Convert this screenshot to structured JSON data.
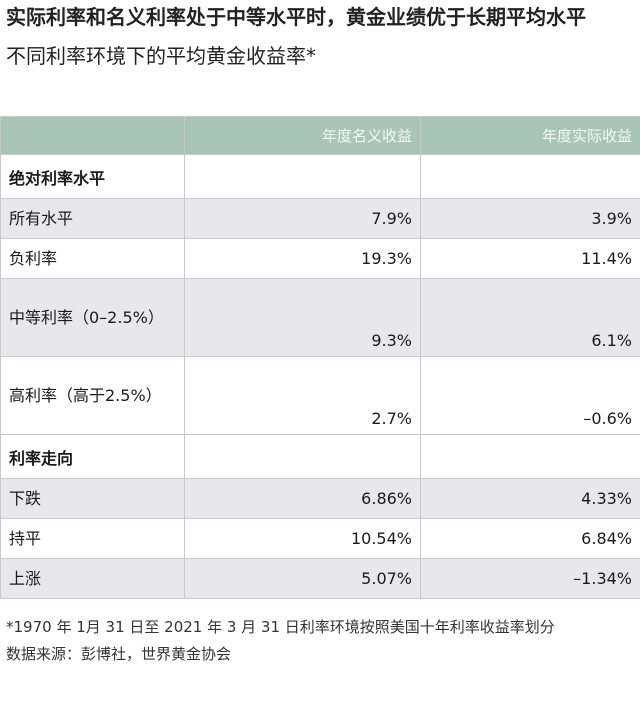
{
  "headline": "实际利率和名义利率处于中等水平时，黄金业绩优于长期平均水平",
  "subtitle": "不同利率环境下的平均黄金收益率*",
  "chart_data": {
    "type": "table",
    "columns": [
      "",
      "年度名义收益",
      "年度实际收益"
    ],
    "sections": [
      {
        "title": "绝对利率水平",
        "rows": [
          {
            "label": "所有水平",
            "nominal": "7.9%",
            "real": "3.9%"
          },
          {
            "label": "负利率",
            "nominal": "19.3%",
            "real": "11.4%"
          },
          {
            "label": "中等利率（0–2.5%）",
            "nominal": "9.3%",
            "real": "6.1%"
          },
          {
            "label": "高利率（高于2.5%）",
            "nominal": "2.7%",
            "real": "–0.6%"
          }
        ]
      },
      {
        "title": "利率走向",
        "rows": [
          {
            "label": "下跌",
            "nominal": "6.86%",
            "real": "4.33%"
          },
          {
            "label": "持平",
            "nominal": "10.54%",
            "real": "6.84%"
          },
          {
            "label": "上涨",
            "nominal": "5.07%",
            "real": "–1.34%"
          }
        ]
      }
    ]
  },
  "footnote": {
    "note": "*1970 年 1月 31 日至 2021 年 3 月 31 日利率环境按照美国十年利率收益率划分",
    "source": "数据来源：彭博社，世界黄金协会"
  },
  "colors": {
    "header_bg": "#a9c5b7",
    "shade_bg": "#e8e8ea",
    "border": "#c9c9c9"
  }
}
